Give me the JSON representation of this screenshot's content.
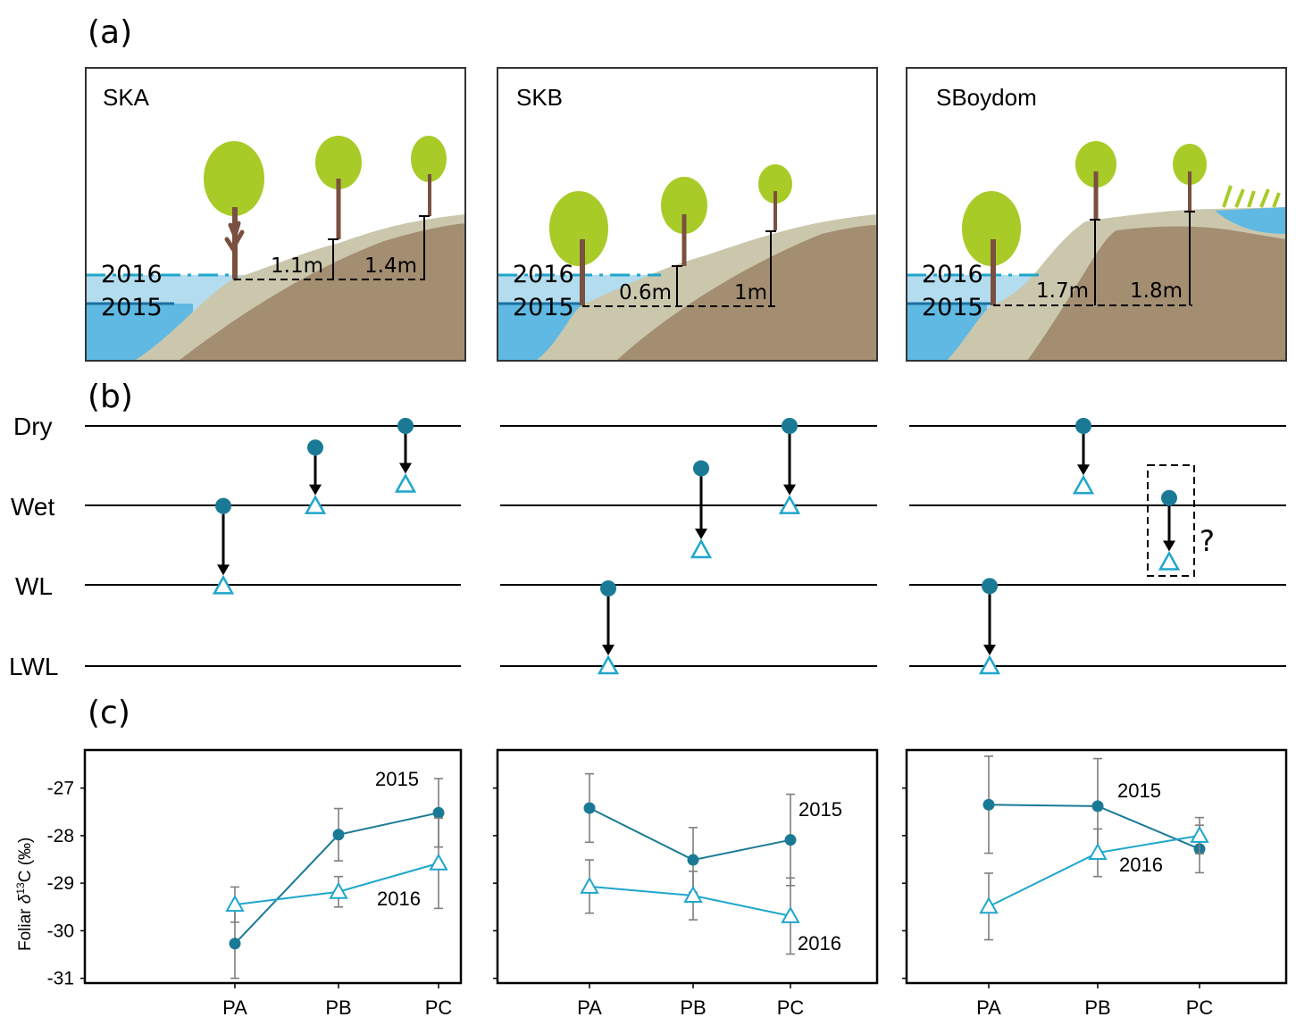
{
  "panel_labels": {
    "a": "(a)",
    "b": "(b)",
    "c": "(c)"
  },
  "sites": [
    {
      "name": "SKA",
      "year_top": "2016",
      "year_bottom": "2015",
      "heights": [
        "1.1m",
        "1.4m"
      ]
    },
    {
      "name": "SKB",
      "year_top": "2016",
      "year_bottom": "2015",
      "heights": [
        "0.6m",
        "1m"
      ]
    },
    {
      "name": "SBoydom",
      "year_top": "2016",
      "year_bottom": "2015",
      "heights": [
        "1.7m",
        "1.8m"
      ]
    }
  ],
  "levels": [
    "Dry",
    "Wet",
    "WL",
    "LWL"
  ],
  "shift_markers": {
    "order_top_to_bottom": [
      "Dry",
      "Wet",
      "WL",
      "LWL"
    ],
    "sites": [
      {
        "site": "SKA",
        "points": [
          {
            "plot": "PA",
            "from": 1.0,
            "to": 2.0
          },
          {
            "plot": "PB",
            "from": 0.27,
            "to": 1.0
          },
          {
            "plot": "PC",
            "from": 0.0,
            "to": 0.73
          }
        ]
      },
      {
        "site": "SKB",
        "points": [
          {
            "plot": "PA",
            "from": 2.03,
            "to": 3.0
          },
          {
            "plot": "PB",
            "from": 0.53,
            "to": 1.55
          },
          {
            "plot": "PC",
            "from": 0.0,
            "to": 1.0
          }
        ]
      },
      {
        "site": "SBoydom",
        "points": [
          {
            "plot": "PA",
            "from": 2.0,
            "to": 3.0
          },
          {
            "plot": "PB",
            "from": 0.0,
            "to": 0.75
          },
          {
            "plot": "PC",
            "from": 0.9,
            "to": 1.7,
            "uncertain": true,
            "note": "?"
          }
        ]
      }
    ]
  },
  "chart_data": {
    "type": "line",
    "ylabel_prefix": "Foliar ",
    "ylabel_symbol": "δ",
    "ylabel_sup": "13",
    "ylabel_suffix": "C (‰)",
    "ylim": [
      -31.1,
      -26.2
    ],
    "yticks": [
      -27,
      -28,
      -29,
      -30,
      -31
    ],
    "yticklabels": [
      "-27",
      "-28",
      "-29",
      "-30",
      "-31"
    ],
    "categories": [
      "PA",
      "PB",
      "PC"
    ],
    "colors": {
      "2015": "#1a7a96",
      "2016": "#1fa6cc",
      "errorbar": "#7f7f7f"
    },
    "panels": [
      {
        "site": "SKA",
        "series": [
          {
            "name": "2015",
            "values": [
              -30.27,
              -27.98,
              -27.52
            ],
            "errors": [
              0.73,
              0.55,
              0.72
            ]
          },
          {
            "name": "2016",
            "values": [
              -29.45,
              -29.18,
              -28.58
            ],
            "errors": [
              0.37,
              0.32,
              0.95
            ]
          }
        ]
      },
      {
        "site": "SKB",
        "series": [
          {
            "name": "2015",
            "values": [
              -27.42,
              -28.51,
              -28.09
            ],
            "errors": [
              0.72,
              0.68,
              0.96
            ]
          },
          {
            "name": "2016",
            "values": [
              -29.07,
              -29.26,
              -29.69
            ],
            "errors": [
              0.56,
              0.51,
              0.8
            ]
          }
        ]
      },
      {
        "site": "SBoydom",
        "series": [
          {
            "name": "2015",
            "values": [
              -27.35,
              -27.38,
              -28.28
            ],
            "errors": [
              1.02,
              1.0,
              0.5
            ]
          },
          {
            "name": "2016",
            "values": [
              -29.49,
              -28.36,
              -28.0
            ],
            "errors": [
              0.7,
              0.5,
              0.38
            ]
          }
        ]
      }
    ]
  },
  "series_annotations": [
    {
      "top": "2015",
      "bottom": "2016"
    },
    {
      "top": "2015",
      "bottom": "2016"
    },
    {
      "top": "2015",
      "bottom": "2016"
    }
  ]
}
